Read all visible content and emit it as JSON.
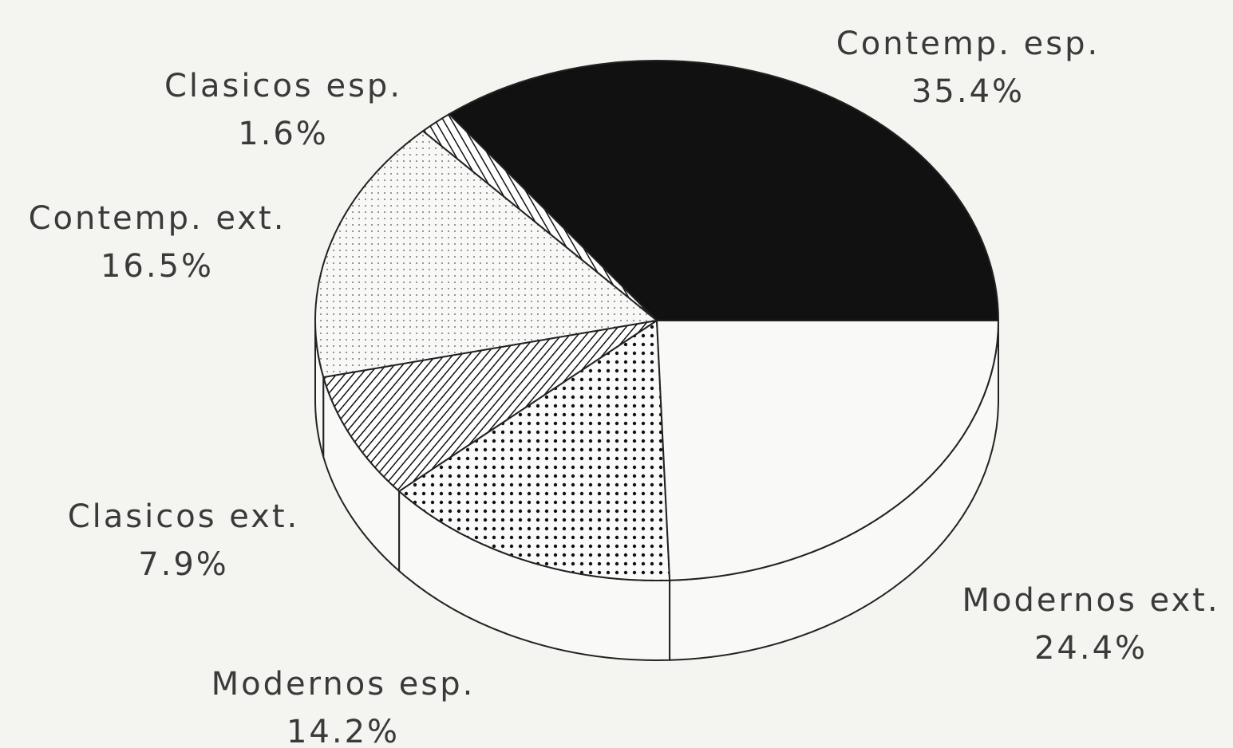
{
  "chart_data": {
    "type": "pie3d",
    "categories": [
      "Contemp. esp.",
      "Clasicos esp.",
      "Contemp. ext.",
      "Clasicos ext.",
      "Modernos esp.",
      "Modernos ext."
    ],
    "values": [
      35.4,
      1.6,
      16.5,
      7.9,
      14.2,
      24.4
    ],
    "value_labels": [
      "35.4%",
      "1.6%",
      "16.5%",
      "7.9%",
      "14.2%",
      "24.4%"
    ],
    "patterns": [
      "solid",
      "vertical-hatch",
      "light-dots",
      "diagonal-hatch",
      "dense-dots",
      "none"
    ]
  }
}
